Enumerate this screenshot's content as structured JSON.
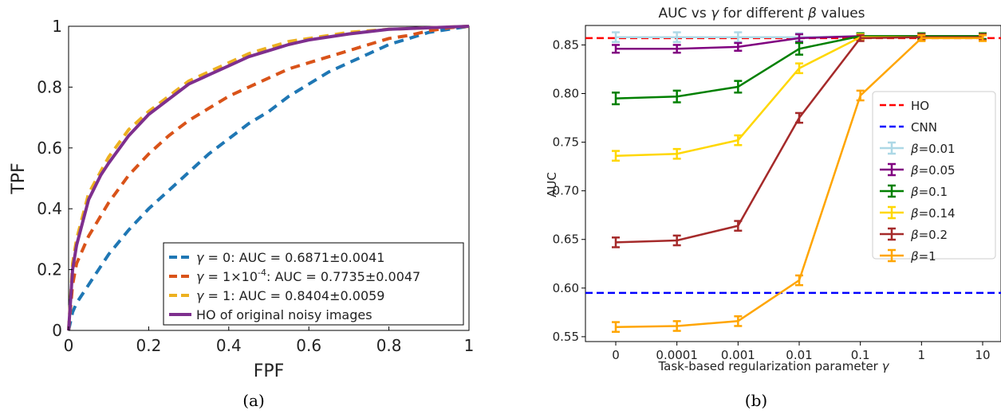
{
  "panel_labels": [
    "(a)",
    "(b)"
  ],
  "chart_data": [
    {
      "type": "line",
      "title": "",
      "xlabel": "FPF",
      "ylabel": "TPF",
      "xlim": [
        0,
        1
      ],
      "ylim": [
        0,
        1
      ],
      "xticks": [
        "0",
        "0.2",
        "0.4",
        "0.6",
        "0.8",
        "1"
      ],
      "yticks": [
        "0",
        "0.2",
        "0.4",
        "0.6",
        "0.8",
        "1"
      ],
      "grid": false,
      "legend_position": "bottom-right",
      "series": [
        {
          "name_parts": [
            "γ",
            " = 0: AUC = 0.6871±0.0041"
          ],
          "color": "#1f77b4",
          "dash": "dashed",
          "points": [
            [
              0,
              0
            ],
            [
              0.01,
              0.06
            ],
            [
              0.02,
              0.09
            ],
            [
              0.05,
              0.15
            ],
            [
              0.1,
              0.25
            ],
            [
              0.15,
              0.33
            ],
            [
              0.2,
              0.4
            ],
            [
              0.25,
              0.46
            ],
            [
              0.3,
              0.52
            ],
            [
              0.35,
              0.58
            ],
            [
              0.4,
              0.63
            ],
            [
              0.45,
              0.68
            ],
            [
              0.5,
              0.72
            ],
            [
              0.55,
              0.77
            ],
            [
              0.6,
              0.81
            ],
            [
              0.65,
              0.85
            ],
            [
              0.7,
              0.88
            ],
            [
              0.75,
              0.91
            ],
            [
              0.8,
              0.94
            ],
            [
              0.85,
              0.96
            ],
            [
              0.9,
              0.98
            ],
            [
              0.95,
              0.99
            ],
            [
              1,
              1
            ]
          ]
        },
        {
          "name_parts": [
            "γ",
            " = 1×10",
            "-4",
            ": AUC = 0.7735±0.0047"
          ],
          "color": "#d95319",
          "dash": "dashed",
          "points": [
            [
              0,
              0
            ],
            [
              0.01,
              0.15
            ],
            [
              0.02,
              0.22
            ],
            [
              0.05,
              0.31
            ],
            [
              0.1,
              0.42
            ],
            [
              0.15,
              0.51
            ],
            [
              0.2,
              0.58
            ],
            [
              0.25,
              0.64
            ],
            [
              0.3,
              0.69
            ],
            [
              0.35,
              0.73
            ],
            [
              0.4,
              0.77
            ],
            [
              0.45,
              0.8
            ],
            [
              0.5,
              0.83
            ],
            [
              0.55,
              0.86
            ],
            [
              0.6,
              0.88
            ],
            [
              0.65,
              0.9
            ],
            [
              0.7,
              0.92
            ],
            [
              0.75,
              0.94
            ],
            [
              0.8,
              0.96
            ],
            [
              0.85,
              0.97
            ],
            [
              0.9,
              0.985
            ],
            [
              0.95,
              0.995
            ],
            [
              1,
              1
            ]
          ]
        },
        {
          "name_parts": [
            "γ",
            " = 1: AUC = 0.8404±0.0059"
          ],
          "color": "#edb120",
          "dash": "dashed",
          "points": [
            [
              0,
              0
            ],
            [
              0.01,
              0.22
            ],
            [
              0.02,
              0.3
            ],
            [
              0.05,
              0.45
            ],
            [
              0.1,
              0.57
            ],
            [
              0.15,
              0.66
            ],
            [
              0.2,
              0.72
            ],
            [
              0.25,
              0.77
            ],
            [
              0.3,
              0.82
            ],
            [
              0.35,
              0.85
            ],
            [
              0.4,
              0.88
            ],
            [
              0.45,
              0.91
            ],
            [
              0.5,
              0.93
            ],
            [
              0.55,
              0.95
            ],
            [
              0.6,
              0.96
            ],
            [
              0.65,
              0.97
            ],
            [
              0.7,
              0.98
            ],
            [
              0.8,
              0.99
            ],
            [
              0.9,
              0.995
            ],
            [
              1,
              1
            ]
          ]
        },
        {
          "name_parts": [
            "HO of original noisy images"
          ],
          "color": "#7e2f8e",
          "dash": "solid",
          "points": [
            [
              0,
              0
            ],
            [
              0.01,
              0.2
            ],
            [
              0.02,
              0.28
            ],
            [
              0.05,
              0.43
            ],
            [
              0.08,
              0.51
            ],
            [
              0.1,
              0.55
            ],
            [
              0.15,
              0.64
            ],
            [
              0.2,
              0.71
            ],
            [
              0.25,
              0.76
            ],
            [
              0.3,
              0.81
            ],
            [
              0.35,
              0.84
            ],
            [
              0.4,
              0.87
            ],
            [
              0.45,
              0.9
            ],
            [
              0.5,
              0.92
            ],
            [
              0.55,
              0.94
            ],
            [
              0.6,
              0.955
            ],
            [
              0.65,
              0.965
            ],
            [
              0.7,
              0.975
            ],
            [
              0.8,
              0.99
            ],
            [
              0.9,
              0.995
            ],
            [
              1,
              1
            ]
          ]
        }
      ]
    },
    {
      "type": "line",
      "title_parts": [
        "AUC vs ",
        "γ",
        " for different ",
        "β",
        " values"
      ],
      "xlabel_parts": [
        "Task-based regularization parameter ",
        "γ"
      ],
      "ylabel": "AUC",
      "categories": [
        "0",
        "0.0001",
        "0.001",
        "0.01",
        "0.1",
        "1",
        "10"
      ],
      "ylim": [
        0.545,
        0.87
      ],
      "yticks": [
        0.55,
        0.6,
        0.65,
        0.7,
        0.75,
        0.8,
        0.85
      ],
      "ytick_labels": [
        "0.55",
        "0.60",
        "0.65",
        "0.70",
        "0.75",
        "0.80",
        "0.85"
      ],
      "grid": false,
      "legend_position": "right",
      "reference_lines": [
        {
          "name": "HO",
          "value": 0.857,
          "color": "#ff0000"
        },
        {
          "name": "CNN",
          "value": 0.595,
          "color": "#0000ff"
        }
      ],
      "series": [
        {
          "beta": "=0.01",
          "color": "#add8e6",
          "values": [
            0.858,
            0.858,
            0.858,
            0.858,
            0.859,
            0.859,
            0.859
          ],
          "errors": [
            0.005,
            0.005,
            0.005,
            0.004,
            0.003,
            0.003,
            0.003
          ]
        },
        {
          "beta": "=0.05",
          "color": "#800080",
          "values": [
            0.846,
            0.846,
            0.848,
            0.857,
            0.859,
            0.859,
            0.859
          ],
          "errors": [
            0.004,
            0.004,
            0.004,
            0.004,
            0.003,
            0.003,
            0.003
          ]
        },
        {
          "beta": "=0.1",
          "color": "#008000",
          "values": [
            0.795,
            0.797,
            0.807,
            0.846,
            0.859,
            0.859,
            0.859
          ],
          "errors": [
            0.006,
            0.006,
            0.006,
            0.006,
            0.003,
            0.003,
            0.003
          ]
        },
        {
          "beta": "=0.14",
          "color": "#ffd700",
          "values": [
            0.736,
            0.738,
            0.752,
            0.826,
            0.858,
            0.858,
            0.858
          ],
          "errors": [
            0.005,
            0.005,
            0.005,
            0.005,
            0.003,
            0.003,
            0.003
          ]
        },
        {
          "beta": "=0.2",
          "color": "#a52a2a",
          "values": [
            0.647,
            0.649,
            0.664,
            0.775,
            0.857,
            0.858,
            0.858
          ],
          "errors": [
            0.005,
            0.005,
            0.005,
            0.005,
            0.003,
            0.003,
            0.003
          ]
        },
        {
          "beta": "=1",
          "color": "#ffa500",
          "values": [
            0.56,
            0.561,
            0.566,
            0.608,
            0.798,
            0.857,
            0.857
          ],
          "errors": [
            0.005,
            0.005,
            0.005,
            0.005,
            0.005,
            0.003,
            0.003
          ]
        }
      ]
    }
  ]
}
